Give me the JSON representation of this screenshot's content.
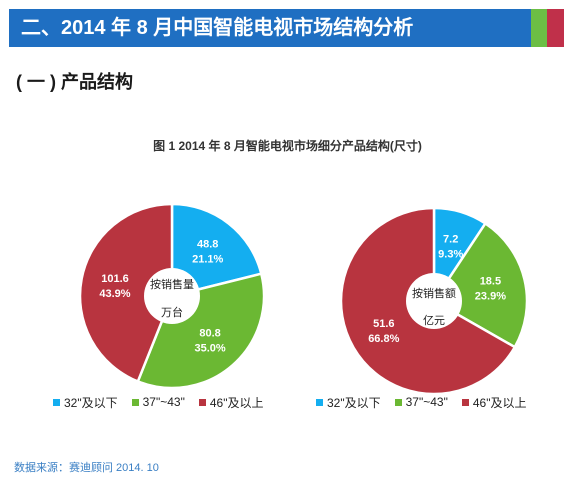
{
  "header": {
    "title": "二、2014 年 8 月中国智能电视市场结构分析",
    "stripe_colors": [
      "#6cbe45",
      "#c0304a"
    ],
    "background": "#1f6fc2"
  },
  "section": {
    "title": "( 一 ) 产品结构"
  },
  "figure": {
    "title": "图 1    2014 年 8 月智能电视市场细分产品结构(尺寸)"
  },
  "source": {
    "text": "数据来源：赛迪顾问 2014. 10"
  },
  "colors": {
    "blue": "#14aef0",
    "green": "#6bb833",
    "red": "#b8343f"
  },
  "chart_data": [
    {
      "type": "pie",
      "center_label": [
        "按销售量",
        "万台"
      ],
      "categories": [
        "32\"及以下",
        "37\"~43\"",
        "46\"及以上"
      ],
      "values": [
        48.8,
        80.8,
        101.6
      ],
      "percents": [
        "21.1%",
        "35.0%",
        "43.9%"
      ],
      "colors": [
        "#14aef0",
        "#6bb833",
        "#b8343f"
      ],
      "legend_position": "bottom"
    },
    {
      "type": "pie",
      "center_label": [
        "按销售额",
        "亿元"
      ],
      "categories": [
        "32\"及以下",
        "37\"~43\"",
        "46\"及以上"
      ],
      "values": [
        7.2,
        18.5,
        51.6
      ],
      "percents": [
        "9.3%",
        "23.9%",
        "66.8%"
      ],
      "colors": [
        "#14aef0",
        "#6bb833",
        "#b8343f"
      ],
      "legend_position": "bottom"
    }
  ]
}
